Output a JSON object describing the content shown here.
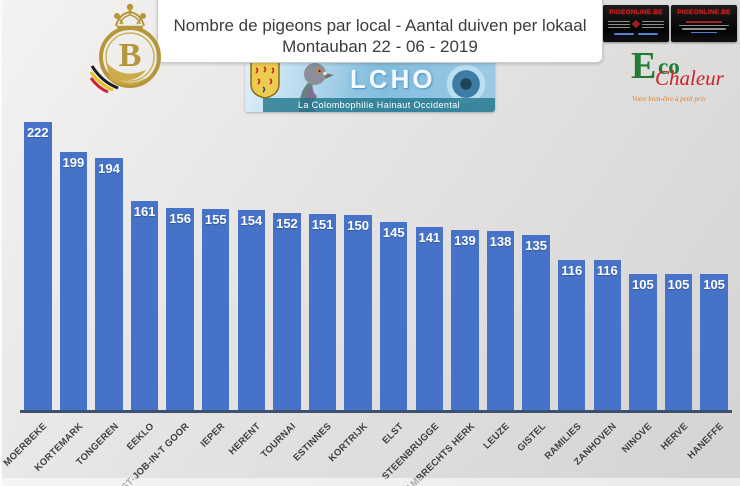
{
  "header": {
    "title_line1": "Nombre de pigeons par local - Aantal duiven per lokaal",
    "title_line2": "Montauban 22 - 06 - 2019"
  },
  "logos": {
    "kbdb_letter": "B",
    "ad_banner_1": {
      "title": "PIGEONLINE.BE"
    },
    "ad_banner_2": {
      "title": "PIGEONLINE.BE"
    },
    "eco": {
      "e": "E",
      "co": "co",
      "chaleur": "Chaleur",
      "tagline": "Votre bien-être à petit prix"
    },
    "lcho": {
      "name": "LCHO",
      "subtitle": "La Colombophilie Hainaut Occidental"
    }
  },
  "chart_data": {
    "type": "bar",
    "title": "Nombre de pigeons par local - Aantal duiven per lokaal",
    "subtitle": "Montauban 22 - 06 - 2019",
    "categories": [
      "MOERBEKE",
      "KORTEMARK",
      "TONGEREN",
      "EEKLO",
      "ST-JOB-IN-T GOOR",
      "IEPER",
      "HERENT",
      "TOURNAI",
      "ESTINNES",
      "KORTRIJK",
      "ELST",
      "STEENBRUGGE",
      "ST LAMBRECHTS HERK",
      "LEUZE",
      "GISTEL",
      "RAMILIES",
      "ZANHOVEN",
      "NINOVE",
      "HERVE",
      "HANEFFE"
    ],
    "values": [
      222,
      199,
      194,
      161,
      156,
      155,
      154,
      152,
      151,
      150,
      145,
      141,
      139,
      138,
      135,
      116,
      116,
      105,
      105,
      105
    ],
    "xlabel": "",
    "ylabel": "",
    "ylim": [
      0,
      222
    ],
    "grid": false,
    "legend": false,
    "bar_color": "#4673c8",
    "axis_color": "#3d5170",
    "value_label_color": "#ffffff"
  }
}
